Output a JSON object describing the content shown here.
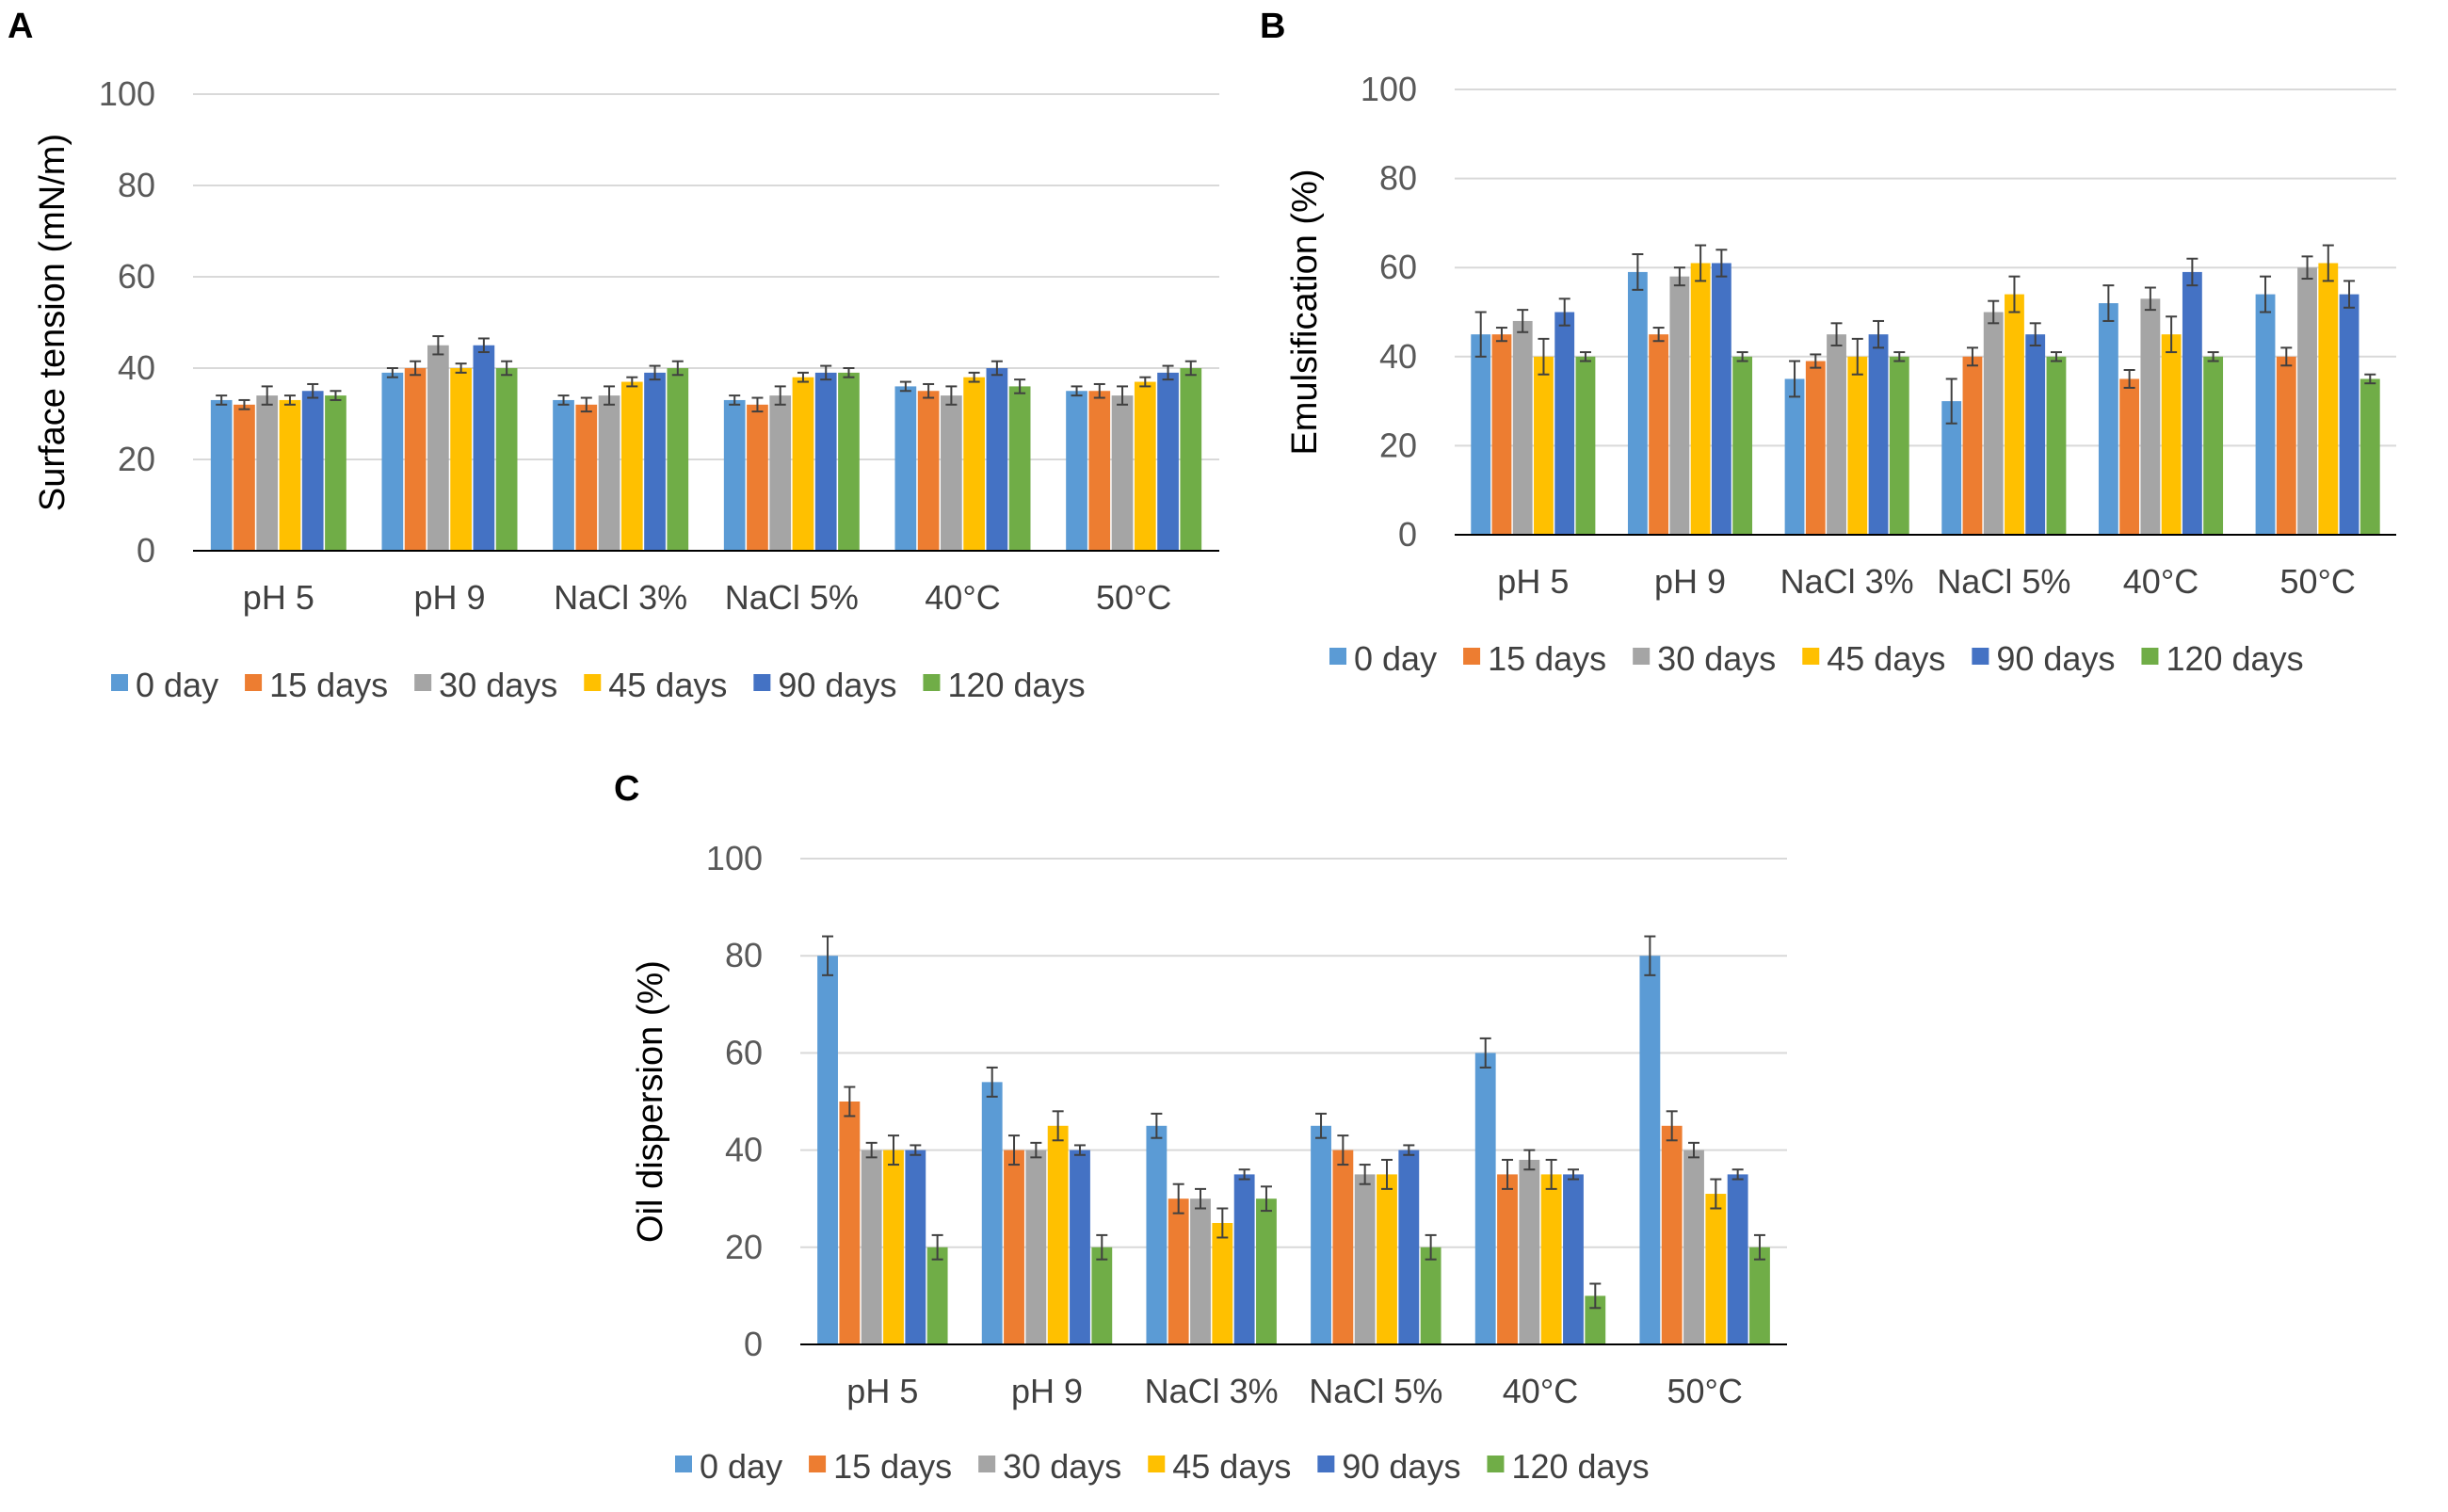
{
  "colors": {
    "0 day": "#5b9bd5",
    "15 days": "#ed7d31",
    "30 days": "#a5a5a5",
    "45 days": "#ffc000",
    "90 days": "#4472c4",
    "120 days": "#70ad47",
    "grid": "#d9d9d9",
    "axis": "#000000",
    "errorbar": "#404040"
  },
  "chart_data": [
    {
      "panel": "A",
      "type": "bar",
      "title": "",
      "xlabel": "",
      "ylabel": "Surface tension (mN/m)",
      "ylim": [
        0,
        100
      ],
      "yticks": [
        "0",
        "20",
        "40",
        "60",
        "80",
        "100"
      ],
      "grid": true,
      "legend": "bottom",
      "categories": [
        "pH 5",
        "pH 9",
        "NaCl 3%",
        "NaCl 5%",
        "40°C",
        "50°C"
      ],
      "series": [
        {
          "name": "0 day",
          "values": [
            33,
            39,
            33,
            33,
            36,
            35
          ],
          "errors": [
            1,
            1,
            1,
            1,
            1,
            1
          ]
        },
        {
          "name": "15 days",
          "values": [
            32,
            40,
            32,
            32,
            35,
            35
          ],
          "errors": [
            1,
            1.5,
            1.5,
            1.5,
            1.5,
            1.5
          ]
        },
        {
          "name": "30 days",
          "values": [
            34,
            45,
            34,
            34,
            34,
            34
          ],
          "errors": [
            2,
            2,
            2,
            2,
            2,
            2
          ]
        },
        {
          "name": "45 days",
          "values": [
            33,
            40,
            37,
            38,
            38,
            37
          ],
          "errors": [
            1,
            1,
            1,
            1,
            1,
            1
          ]
        },
        {
          "name": "90 days",
          "values": [
            35,
            45,
            39,
            39,
            40,
            39
          ],
          "errors": [
            1.5,
            1.5,
            1.5,
            1.5,
            1.5,
            1.5
          ]
        },
        {
          "name": "120 days",
          "values": [
            34,
            40,
            40,
            39,
            36,
            40
          ],
          "errors": [
            1,
            1.5,
            1.5,
            1,
            1.5,
            1.5
          ]
        }
      ]
    },
    {
      "panel": "B",
      "type": "bar",
      "title": "",
      "xlabel": "",
      "ylabel": "Emulsification (%)",
      "ylim": [
        0,
        100
      ],
      "yticks": [
        "0",
        "20",
        "40",
        "60",
        "80",
        "100"
      ],
      "grid": true,
      "legend": "bottom",
      "categories": [
        "pH 5",
        "pH 9",
        "NaCl 3%",
        "NaCl 5%",
        "40°C",
        "50°C"
      ],
      "series": [
        {
          "name": "0 day",
          "values": [
            45,
            59,
            35,
            30,
            52,
            54
          ],
          "errors": [
            5,
            4,
            4,
            5,
            4,
            4
          ]
        },
        {
          "name": "15 days",
          "values": [
            45,
            45,
            39,
            40,
            35,
            40
          ],
          "errors": [
            1.5,
            1.5,
            1.5,
            2,
            2,
            2
          ]
        },
        {
          "name": "30 days",
          "values": [
            48,
            58,
            45,
            50,
            53,
            60
          ],
          "errors": [
            2.5,
            2,
            2.5,
            2.5,
            2.5,
            2.5
          ]
        },
        {
          "name": "45 days",
          "values": [
            40,
            61,
            40,
            54,
            45,
            61
          ],
          "errors": [
            4,
            4,
            4,
            4,
            4,
            4
          ]
        },
        {
          "name": "90 days",
          "values": [
            50,
            61,
            45,
            45,
            59,
            54
          ],
          "errors": [
            3,
            3,
            3,
            2.5,
            3,
            3
          ]
        },
        {
          "name": "120 days",
          "values": [
            40,
            40,
            40,
            40,
            40,
            35
          ],
          "errors": [
            1,
            1,
            1,
            1,
            1,
            1
          ]
        }
      ]
    },
    {
      "panel": "C",
      "type": "bar",
      "title": "",
      "xlabel": "",
      "ylabel": "Oil dispersion (%)",
      "ylim": [
        0,
        100
      ],
      "yticks": [
        "0",
        "20",
        "40",
        "60",
        "80",
        "100"
      ],
      "grid": true,
      "legend": "bottom",
      "categories": [
        "pH 5",
        "pH 9",
        "NaCl 3%",
        "NaCl 5%",
        "40°C",
        "50°C"
      ],
      "series": [
        {
          "name": "0 day",
          "values": [
            80,
            54,
            45,
            45,
            60,
            80
          ],
          "errors": [
            4,
            3,
            2.5,
            2.5,
            3,
            4
          ]
        },
        {
          "name": "15 days",
          "values": [
            50,
            40,
            30,
            40,
            35,
            45
          ],
          "errors": [
            3,
            3,
            3,
            3,
            3,
            3
          ]
        },
        {
          "name": "30 days",
          "values": [
            40,
            40,
            30,
            35,
            38,
            40
          ],
          "errors": [
            1.5,
            1.5,
            2,
            2,
            2,
            1.5
          ]
        },
        {
          "name": "45 days",
          "values": [
            40,
            45,
            25,
            35,
            35,
            31
          ],
          "errors": [
            3,
            3,
            3,
            3,
            3,
            3
          ]
        },
        {
          "name": "90 days",
          "values": [
            40,
            40,
            35,
            40,
            35,
            35
          ],
          "errors": [
            1,
            1,
            1,
            1,
            1,
            1
          ]
        },
        {
          "name": "120 days",
          "values": [
            20,
            20,
            30,
            20,
            10,
            20
          ],
          "errors": [
            2.5,
            2.5,
            2.5,
            2.5,
            2.5,
            2.5
          ]
        }
      ]
    }
  ]
}
